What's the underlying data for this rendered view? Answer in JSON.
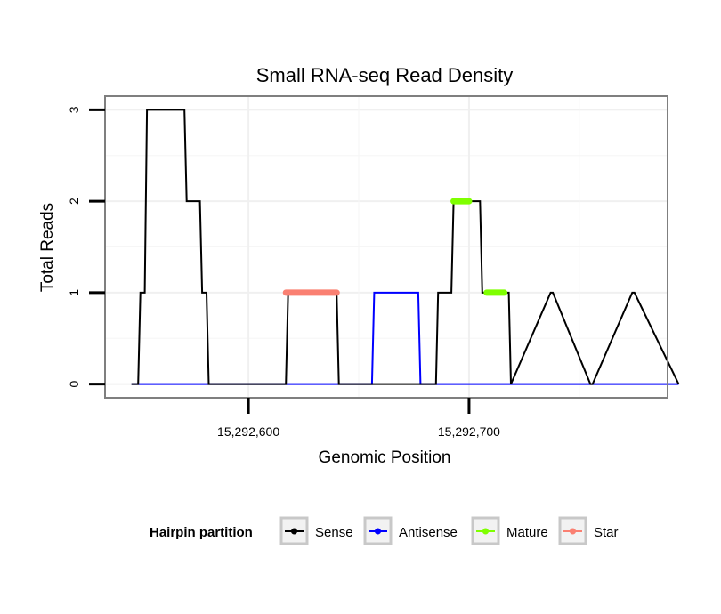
{
  "chart_data": {
    "type": "line",
    "title": "Small RNA-seq Read Density",
    "xlabel": "Genomic Position",
    "ylabel": "Total Reads",
    "xlim": [
      15292535,
      15292790
    ],
    "ylim": [
      -0.15,
      3.15
    ],
    "x_ticks": [
      15292600,
      15292700
    ],
    "x_tick_labels": [
      "15,292,600",
      "15,292,700"
    ],
    "y_ticks": [
      0,
      1,
      2,
      3
    ],
    "y_tick_labels": [
      "0",
      "1",
      "2",
      "3"
    ],
    "grid": true,
    "legend": {
      "title": "Hairpin partition",
      "position": "bottom",
      "entries": [
        "Sense",
        "Antisense",
        "Mature",
        "Star"
      ]
    },
    "series": [
      {
        "name": "Sense",
        "color": "#000000",
        "x": [
          15292547,
          15292550,
          15292551,
          15292553,
          15292554,
          15292571,
          15292572,
          15292578,
          15292579,
          15292581,
          15292582,
          15292617,
          15292618,
          15292640,
          15292641,
          15292685,
          15292686,
          15292692,
          15292693,
          15292705,
          15292706,
          15292718,
          15292719,
          15292737,
          15292738,
          15292755,
          15292756,
          15292774,
          15292775,
          15292795
        ],
        "values": [
          0,
          0,
          1,
          1,
          3,
          3,
          2,
          2,
          1,
          1,
          0,
          0,
          1,
          1,
          0,
          0,
          1,
          1,
          2,
          2,
          1,
          1,
          0,
          1,
          1,
          0,
          0,
          1,
          1,
          0
        ]
      },
      {
        "name": "Antisense",
        "color": "#0000ff",
        "x": [
          15292547,
          15292656,
          15292657,
          15292677,
          15292678,
          15292795
        ],
        "values": [
          0,
          0,
          1,
          1,
          0,
          0
        ]
      },
      {
        "name": "Mature",
        "color": "#7fff00",
        "segments": [
          {
            "x": [
              15292693,
              15292700
            ],
            "values": [
              2,
              2
            ]
          },
          {
            "x": [
              15292708,
              15292716
            ],
            "values": [
              1,
              1
            ]
          }
        ]
      },
      {
        "name": "Star",
        "color": "#fa8072",
        "segments": [
          {
            "x": [
              15292617,
              15292640
            ],
            "values": [
              1,
              1
            ]
          }
        ]
      }
    ]
  }
}
